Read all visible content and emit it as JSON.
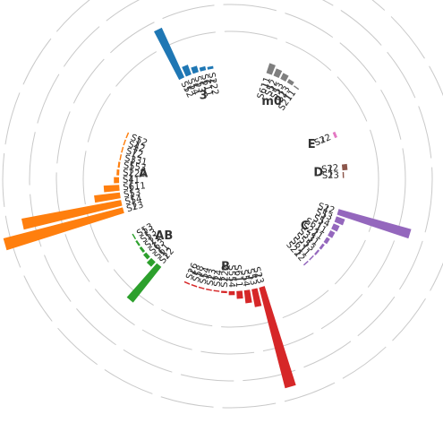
{
  "chart_data": {
    "type": "bar",
    "layout": "circular-grouped",
    "title": "",
    "xlabel": "",
    "ylabel": "",
    "grid": true,
    "ylim": [
      0,
      100
    ],
    "groups": [
      {
        "name": "m0",
        "color": "#7f7f7f",
        "bars": [
          {
            "label": "S611",
            "value": 8
          },
          {
            "label": "S52",
            "value": 6
          },
          {
            "label": "S53",
            "value": 5
          },
          {
            "label": "S23",
            "value": 3
          },
          {
            "label": "S211",
            "value": 1
          }
        ]
      },
      {
        "name": "E",
        "color": "#e377c2",
        "bars": [
          {
            "label": "S22",
            "value": 2
          }
        ]
      },
      {
        "name": "D",
        "color": "#8c564b",
        "bars": [
          {
            "label": "S22",
            "value": 4
          },
          {
            "label": "S23",
            "value": 1
          }
        ]
      },
      {
        "name": "C",
        "color": "#9467bd",
        "bars": [
          {
            "label": "S22",
            "value": 58
          },
          {
            "label": "S53",
            "value": 7
          },
          {
            "label": "S54",
            "value": 5
          },
          {
            "label": "S611",
            "value": 4
          },
          {
            "label": "S221",
            "value": 3
          },
          {
            "label": "S331",
            "value": 2
          },
          {
            "label": "S553",
            "value": 1.5
          },
          {
            "label": "S611",
            "value": 1
          },
          {
            "label": "S222",
            "value": 1
          }
        ]
      },
      {
        "name": "B",
        "color": "#d62728",
        "bars": [
          {
            "label": "S23",
            "value": 80
          },
          {
            "label": "S53",
            "value": 14
          },
          {
            "label": "S54",
            "value": 10
          },
          {
            "label": "S611",
            "value": 6
          },
          {
            "label": "S554",
            "value": 3
          },
          {
            "label": "S222",
            "value": 1.5
          },
          {
            "label": "S24",
            "value": 1
          },
          {
            "label": "S23",
            "value": 1
          },
          {
            "label": "S54",
            "value": 1
          },
          {
            "label": "S58",
            "value": 1
          },
          {
            "label": "S26",
            "value": 1
          }
        ]
      },
      {
        "name": "AB",
        "color": "#2ca02c",
        "bars": [
          {
            "label": "S22",
            "value": 35
          },
          {
            "label": "S61",
            "value": 5
          },
          {
            "label": "S63",
            "value": 3
          },
          {
            "label": "S21",
            "value": 2
          },
          {
            "label": "S53",
            "value": 1.5
          },
          {
            "label": "S53",
            "value": 1
          }
        ]
      },
      {
        "name": "A",
        "color": "#ff7f0e",
        "bars": [
          {
            "label": "S23",
            "value": 95
          },
          {
            "label": "S54",
            "value": 78
          },
          {
            "label": "S53",
            "value": 20
          },
          {
            "label": "S611",
            "value": 12
          },
          {
            "label": "S41",
            "value": 4
          },
          {
            "label": "S222",
            "value": 2
          },
          {
            "label": "S553",
            "value": 1.5
          },
          {
            "label": "S331",
            "value": 1
          },
          {
            "label": "S72",
            "value": 1
          },
          {
            "label": "S42",
            "value": 1
          },
          {
            "label": "S52",
            "value": 1
          }
        ]
      },
      {
        "name": "3",
        "color": "#1f77b4",
        "bars": [
          {
            "label": "S52",
            "value": 42
          },
          {
            "label": "S54",
            "value": 8
          },
          {
            "label": "S53",
            "value": 5
          },
          {
            "label": "S611",
            "value": 3
          },
          {
            "label": "S222",
            "value": 2
          }
        ]
      }
    ]
  }
}
